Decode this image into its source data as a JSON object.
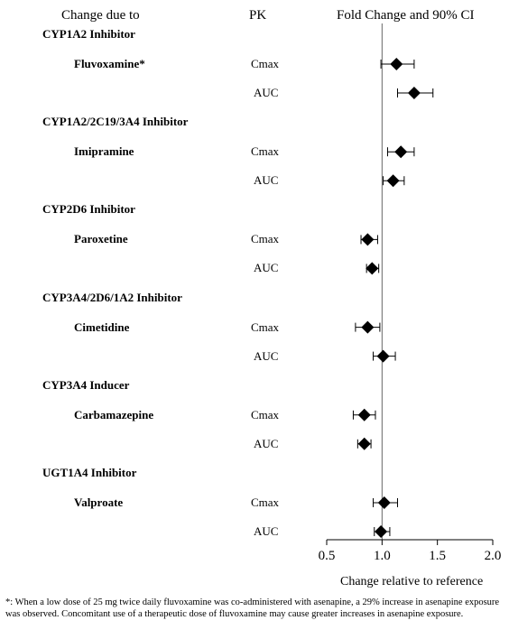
{
  "header": {
    "col1": "Change due to",
    "col2": "PK",
    "col3": "Fold Change and 90% CI"
  },
  "xlabel": "Change relative to reference",
  "footnote": "*: When a low dose of 25 mg twice daily fluvoxamine was co-administered with asenapine, a 29% increase in asenapine exposure was observed. Concomitant use of a therapeutic dose of fluvoxamine may cause greater increases in asenapine exposure.",
  "groups": [
    {
      "label": "CYP1A2 Inhibitor",
      "drug": "Fluvoxamine*",
      "pk": [
        "Cmax",
        "AUC"
      ]
    },
    {
      "label": "CYP1A2/2C19/3A4 Inhibitor",
      "drug": "Imipramine",
      "pk": [
        "Cmax",
        "AUC"
      ]
    },
    {
      "label": "CYP2D6 Inhibitor",
      "drug": "Paroxetine",
      "pk": [
        "Cmax",
        "AUC"
      ]
    },
    {
      "label": "CYP3A4/2D6/1A2 Inhibitor",
      "drug": "Cimetidine",
      "pk": [
        "Cmax",
        "AUC"
      ]
    },
    {
      "label": "CYP3A4 Inducer",
      "drug": "Carbamazepine",
      "pk": [
        "Cmax",
        "AUC"
      ]
    },
    {
      "label": "UGT1A4 Inhibitor",
      "drug": "Valproate",
      "pk": [
        "Cmax",
        "AUC"
      ]
    }
  ],
  "chart_data": {
    "type": "scatter",
    "subtype": "forest",
    "title": "Fold Change and 90% CI",
    "xlabel": "Change relative to reference",
    "xlim": [
      0.5,
      2.0
    ],
    "xticks": [
      "0.5",
      "1.0",
      "1.5",
      "2.0"
    ],
    "reference_line": 1.0,
    "marker": "diamond",
    "points": [
      {
        "drug": "Fluvoxamine*",
        "pk": "Cmax",
        "estimate": 1.13,
        "lower": 0.99,
        "upper": 1.29
      },
      {
        "drug": "Fluvoxamine*",
        "pk": "AUC",
        "estimate": 1.29,
        "lower": 1.14,
        "upper": 1.46
      },
      {
        "drug": "Imipramine",
        "pk": "Cmax",
        "estimate": 1.17,
        "lower": 1.05,
        "upper": 1.29
      },
      {
        "drug": "Imipramine",
        "pk": "AUC",
        "estimate": 1.1,
        "lower": 1.01,
        "upper": 1.2
      },
      {
        "drug": "Paroxetine",
        "pk": "Cmax",
        "estimate": 0.87,
        "lower": 0.81,
        "upper": 0.96
      },
      {
        "drug": "Paroxetine",
        "pk": "AUC",
        "estimate": 0.91,
        "lower": 0.86,
        "upper": 0.97
      },
      {
        "drug": "Cimetidine",
        "pk": "Cmax",
        "estimate": 0.87,
        "lower": 0.76,
        "upper": 0.98
      },
      {
        "drug": "Cimetidine",
        "pk": "AUC",
        "estimate": 1.01,
        "lower": 0.92,
        "upper": 1.12
      },
      {
        "drug": "Carbamazepine",
        "pk": "Cmax",
        "estimate": 0.84,
        "lower": 0.74,
        "upper": 0.94
      },
      {
        "drug": "Carbamazepine",
        "pk": "AUC",
        "estimate": 0.84,
        "lower": 0.78,
        "upper": 0.9
      },
      {
        "drug": "Valproate",
        "pk": "Cmax",
        "estimate": 1.02,
        "lower": 0.92,
        "upper": 1.14
      },
      {
        "drug": "Valproate",
        "pk": "AUC",
        "estimate": 0.99,
        "lower": 0.93,
        "upper": 1.07
      }
    ]
  }
}
